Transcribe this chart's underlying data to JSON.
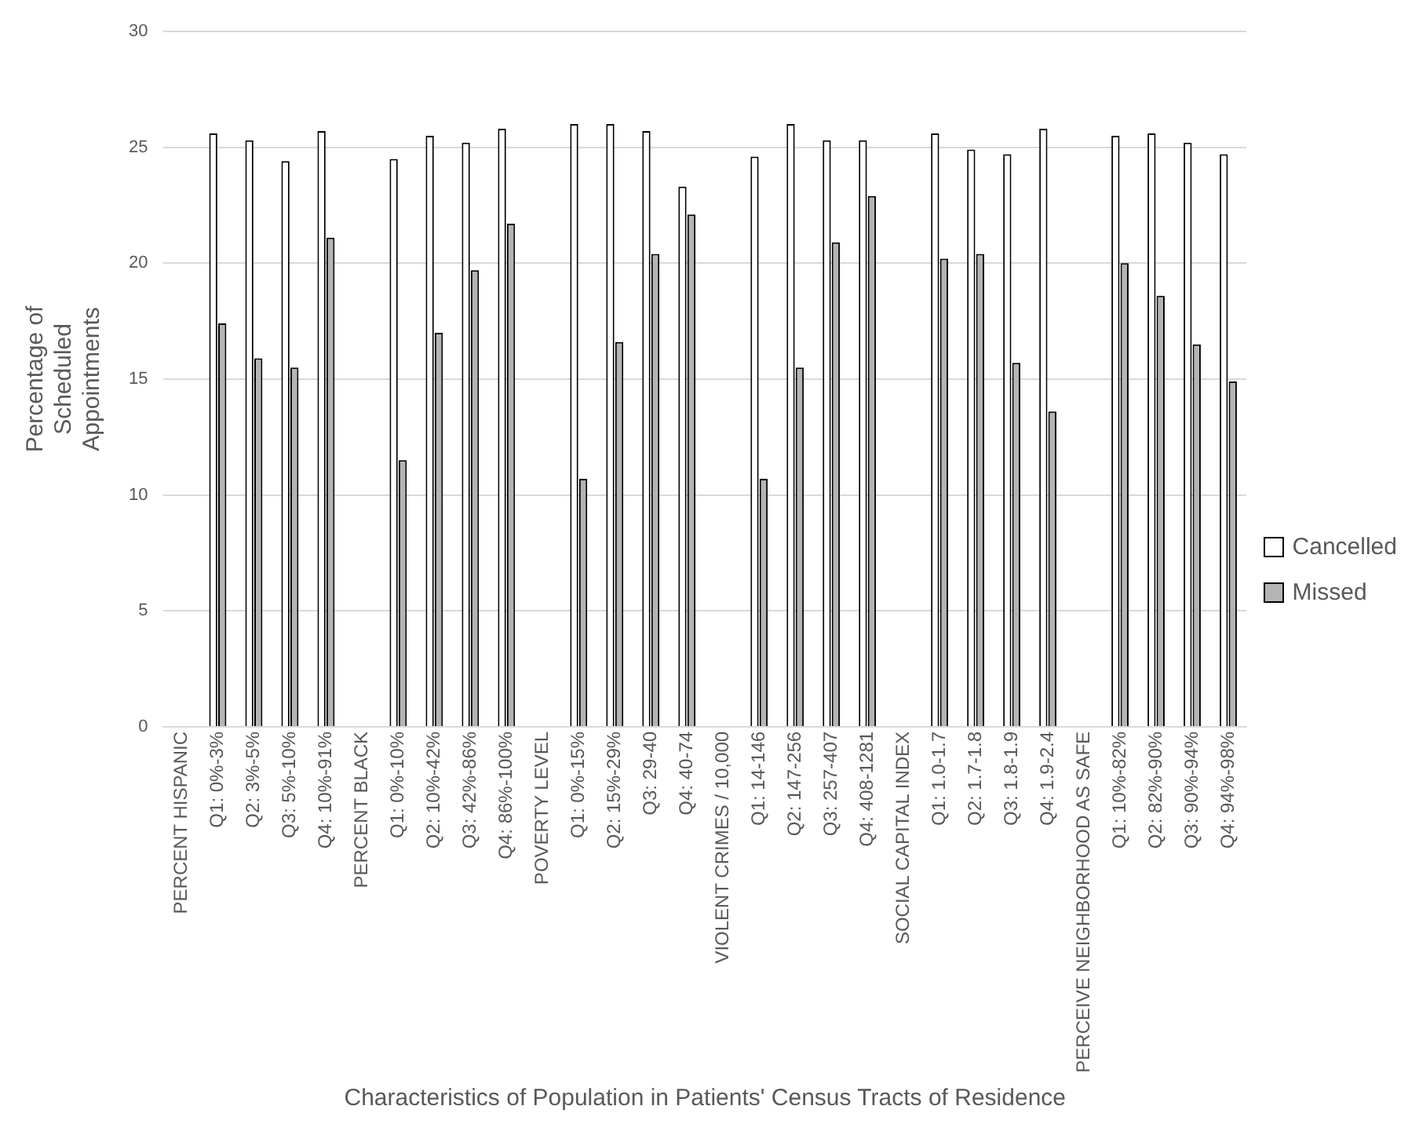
{
  "chart_data": {
    "type": "bar",
    "xlabel": "Characteristics of Population in Patients' Census Tracts of Residence",
    "ylabel": "Percentage of Scheduled Appointments",
    "categories": [
      "PERCENT HISPANIC",
      "Q1: 0%-3%",
      "Q2: 3%-5%",
      "Q3: 5%-10%",
      "Q4: 10%-91%",
      "PERCENT BLACK",
      "Q1: 0%-10%",
      "Q2: 10%-42%",
      "Q3: 42%-86%",
      "Q4: 86%-100%",
      "POVERTY LEVEL",
      "Q1: 0%-15%",
      "Q2: 15%-29%",
      "Q3: 29-40",
      "Q4: 40-74",
      "VIOLENT CRIMES / 10,000",
      "Q1: 14-146",
      "Q2: 147-256",
      "Q3: 257-407",
      "Q4: 408-1281",
      "SOCIAL CAPITAL INDEX",
      "Q1: 1.0-1.7",
      "Q2: 1.7-1.8",
      "Q3: 1.8-1.9",
      "Q4: 1.9-2.4",
      "PERCEIVE NEIGHBORHOOD AS SAFE",
      "Q1: 10%-82%",
      "Q2: 82%-90%",
      "Q3: 90%-94%",
      "Q4: 94%-98%"
    ],
    "series": [
      {
        "name": "Cancelled",
        "color": "#ffffff",
        "values": [
          null,
          25.6,
          25.3,
          24.4,
          25.7,
          null,
          24.5,
          25.5,
          25.2,
          25.8,
          null,
          26.0,
          26.0,
          25.7,
          23.3,
          null,
          24.6,
          26.0,
          25.3,
          25.3,
          null,
          25.6,
          24.9,
          24.7,
          25.8,
          null,
          25.5,
          25.6,
          25.2,
          24.7
        ]
      },
      {
        "name": "Missed",
        "color": "#b4b4b4",
        "values": [
          null,
          17.4,
          15.9,
          15.5,
          21.1,
          null,
          11.5,
          17.0,
          19.7,
          21.7,
          null,
          10.7,
          16.6,
          20.4,
          22.1,
          null,
          10.7,
          15.5,
          20.9,
          22.9,
          null,
          20.2,
          20.4,
          15.7,
          13.6,
          null,
          20.0,
          18.6,
          16.5,
          14.9
        ]
      }
    ],
    "ylim": [
      0,
      30
    ],
    "yticks": [
      0,
      5,
      10,
      15,
      20,
      25,
      30
    ],
    "grid": "y",
    "legend": "right"
  }
}
